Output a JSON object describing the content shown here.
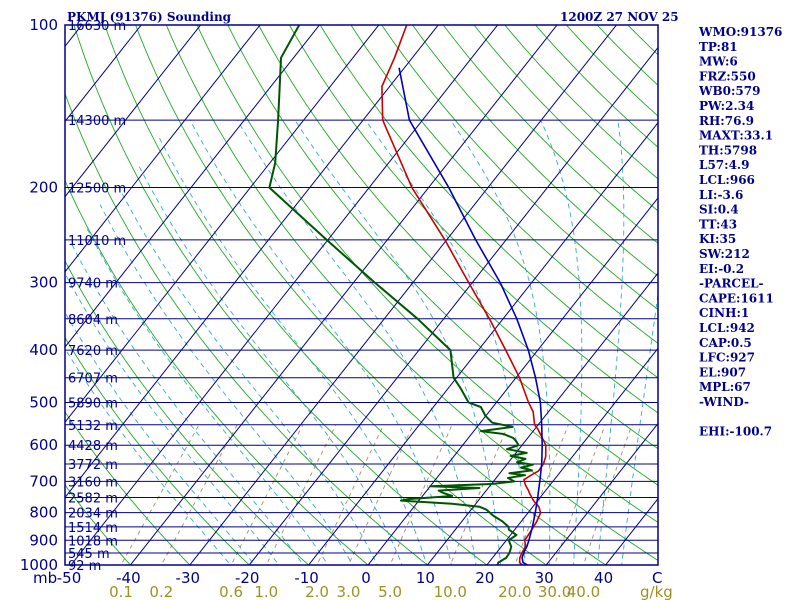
{
  "header": {
    "station_title": "PKMJ (91376) Sounding",
    "time_title": "1200Z 27 NOV 25"
  },
  "colors": {
    "frame": "#00008b",
    "isobar": "#00008b",
    "isotherm": "#00008b",
    "dry_adiabat": "#22aa22",
    "moist_adiabat": "#33aacc",
    "mixing_ratio": "#a09060",
    "temperature": "#cc0000",
    "dewpoint": "#005500",
    "parcel": "#0000bb",
    "mixing_label": "#a09020"
  },
  "indices": [
    "WMO:91376",
    "TP:81",
    "MW:6",
    "FRZ:550",
    "WB0:579",
    "PW:2.34",
    "RH:76.9",
    "MAXT:33.1",
    "TH:5798",
    "L57:4.9",
    "LCL:966",
    "LI:-3.6",
    "SI:0.4",
    "TT:43",
    "KI:35",
    "SW:212",
    "EI:-0.2",
    "-PARCEL-",
    "CAPE:1611",
    "CINH:1",
    "LCL:942",
    "CAP:0.5",
    "LFC:927",
    "EL:907",
    "MPL:67",
    "-WIND-",
    "",
    "EHI:-100.7"
  ],
  "chart_data": {
    "type": "line",
    "subtype": "skew-t log-p",
    "xlabel": "C",
    "ylabel": "mb",
    "ylim": [
      1000,
      100
    ],
    "xlim": [
      -50,
      50
    ],
    "pressure_ticks": [
      100,
      200,
      300,
      400,
      500,
      600,
      700,
      800,
      900,
      1000
    ],
    "temp_ticks": [
      -50,
      -40,
      -30,
      -20,
      -10,
      0,
      10,
      20,
      30,
      40
    ],
    "temp_tick_labels": [
      "-50",
      "-40",
      "-30",
      "-20",
      "-10",
      "0",
      "10",
      "20",
      "30",
      "40"
    ],
    "unit_x": "C",
    "unit_y": "mb",
    "mixing_ratio_unit": "g/kg",
    "mixing_ratios": [
      0.1,
      0.2,
      0.6,
      1.0,
      2.0,
      3.0,
      5.0,
      10.0,
      20.0,
      30.0,
      40.0
    ],
    "mixing_ratio_labels": [
      "0.1",
      "0.2",
      "0.6",
      "1.0",
      "2.0",
      "3.0",
      "5.0",
      "10.0",
      "20.0",
      "30.0",
      "40.0"
    ],
    "heights": [
      {
        "p": 100,
        "label": "16630 m"
      },
      {
        "p": 150,
        "label": "14300 m"
      },
      {
        "p": 200,
        "label": "12500 m"
      },
      {
        "p": 250,
        "label": "11010 m"
      },
      {
        "p": 300,
        "label": "9740 m"
      },
      {
        "p": 350,
        "label": "8604 m"
      },
      {
        "p": 400,
        "label": "7620 m"
      },
      {
        "p": 450,
        "label": "6707 m"
      },
      {
        "p": 500,
        "label": "5890 m"
      },
      {
        "p": 550,
        "label": "5132 m"
      },
      {
        "p": 600,
        "label": "4428 m"
      },
      {
        "p": 650,
        "label": "3772 m"
      },
      {
        "p": 700,
        "label": "3160 m"
      },
      {
        "p": 750,
        "label": "2582 m"
      },
      {
        "p": 800,
        "label": "2034 m"
      },
      {
        "p": 850,
        "label": "1514 m"
      },
      {
        "p": 900,
        "label": "1018 m"
      },
      {
        "p": 950,
        "label": "545 m"
      },
      {
        "p": 1000,
        "label": "92 m"
      }
    ],
    "series": [
      {
        "name": "Temperature",
        "points": [
          [
            1010,
            29.5
          ],
          [
            1000,
            26
          ],
          [
            990,
            25.2
          ],
          [
            970,
            24.6
          ],
          [
            950,
            24.3
          ],
          [
            925,
            24.1
          ],
          [
            900,
            23.1
          ],
          [
            880,
            23.0
          ],
          [
            850,
            22.8
          ],
          [
            830,
            22.6
          ],
          [
            800,
            22.1
          ],
          [
            780,
            21.0
          ],
          [
            760,
            19.3
          ],
          [
            740,
            17.9
          ],
          [
            725,
            16.9
          ],
          [
            710,
            15.8
          ],
          [
            695,
            14.9
          ],
          [
            680,
            15.6
          ],
          [
            670,
            16.2
          ],
          [
            650,
            16.1
          ],
          [
            630,
            15.5
          ],
          [
            600,
            14.0
          ],
          [
            580,
            12.3
          ],
          [
            560,
            10.5
          ],
          [
            550,
            9.4
          ],
          [
            520,
            7.4
          ],
          [
            500,
            5.4
          ],
          [
            450,
            0.6
          ],
          [
            400,
            -5.4
          ],
          [
            350,
            -12.3
          ],
          [
            300,
            -20.6
          ],
          [
            250,
            -30.3
          ],
          [
            200,
            -42.8
          ],
          [
            150,
            -56.7
          ],
          [
            130,
            -61.3
          ],
          [
            115,
            -63.0
          ],
          [
            100,
            -65.3
          ]
        ]
      },
      {
        "name": "Dewpoint",
        "points": [
          [
            1010,
            22.3
          ],
          [
            1000,
            21.8
          ],
          [
            990,
            21.6
          ],
          [
            970,
            22.3
          ],
          [
            950,
            22.2
          ],
          [
            925,
            21.7
          ],
          [
            900,
            20.4
          ],
          [
            880,
            21.0
          ],
          [
            860,
            19.0
          ],
          [
            850,
            18.6
          ],
          [
            830,
            16.8
          ],
          [
            810,
            14.5
          ],
          [
            790,
            12.6
          ],
          [
            780,
            11.0
          ],
          [
            770,
            6.0
          ],
          [
            760,
            -3.0
          ],
          [
            755,
            -2.0
          ],
          [
            745,
            5.0
          ],
          [
            735,
            3.0
          ],
          [
            728,
            2.0
          ],
          [
            720,
            8.5
          ],
          [
            715,
            0.0
          ],
          [
            708,
            10.0
          ],
          [
            700,
            13.5
          ],
          [
            690,
            12.0
          ],
          [
            682,
            14.5
          ],
          [
            676,
            11.6
          ],
          [
            668,
            15.0
          ],
          [
            660,
            12.8
          ],
          [
            652,
            14.4
          ],
          [
            645,
            11.4
          ],
          [
            636,
            12.4
          ],
          [
            628,
            9.5
          ],
          [
            620,
            11.8
          ],
          [
            610,
            8.0
          ],
          [
            600,
            9.4
          ],
          [
            590,
            8.5
          ],
          [
            582,
            7.6
          ],
          [
            572,
            5.4
          ],
          [
            565,
            1.2
          ],
          [
            555,
            6.0
          ],
          [
            545,
            2.0
          ],
          [
            530,
            0.0
          ],
          [
            510,
            -2.0
          ],
          [
            500,
            -4.7
          ],
          [
            470,
            -8.0
          ],
          [
            450,
            -10.5
          ],
          [
            400,
            -14.7
          ],
          [
            350,
            -24.4
          ],
          [
            300,
            -36.4
          ],
          [
            250,
            -50.2
          ],
          [
            200,
            -66.8
          ],
          [
            180,
            -69.1
          ],
          [
            150,
            -74.3
          ],
          [
            130,
            -78.5
          ],
          [
            115,
            -82.1
          ],
          [
            100,
            -83.4
          ]
        ]
      },
      {
        "name": "Parcel",
        "points": [
          [
            1010,
            29.5
          ],
          [
            1000,
            26.8
          ],
          [
            990,
            25.8
          ],
          [
            970,
            25.0
          ],
          [
            950,
            24.6
          ],
          [
            925,
            24.3
          ],
          [
            900,
            23.8
          ],
          [
            850,
            22.6
          ],
          [
            800,
            21.2
          ],
          [
            750,
            19.6
          ],
          [
            700,
            17.8
          ],
          [
            650,
            15.8
          ],
          [
            600,
            13.4
          ],
          [
            550,
            10.6
          ],
          [
            500,
            7.4
          ],
          [
            450,
            3.3
          ],
          [
            400,
            -1.6
          ],
          [
            350,
            -7.7
          ],
          [
            300,
            -15.3
          ],
          [
            250,
            -25.1
          ],
          [
            200,
            -36.6
          ],
          [
            150,
            -52.2
          ],
          [
            120,
            -60.9
          ]
        ]
      }
    ]
  }
}
